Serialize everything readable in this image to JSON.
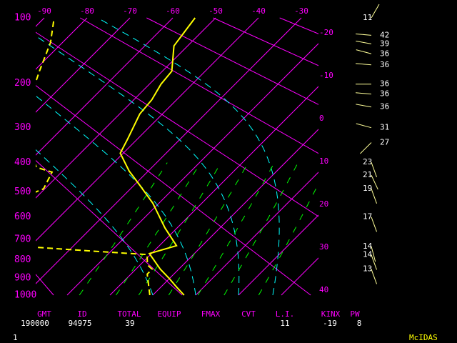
{
  "chart_data": {
    "type": "skewt",
    "ylim": [
      1000,
      100
    ],
    "yticks": [
      100,
      200,
      300,
      400,
      500,
      600,
      700,
      800,
      900,
      1000
    ],
    "xlim": [
      -92,
      -26
    ],
    "xticks": [
      -90,
      -80,
      -70,
      -60,
      -50,
      -40,
      -30,
      -20,
      -10,
      0,
      10,
      20,
      30,
      40
    ],
    "grid": true,
    "isotherm_color": "#ff00ff",
    "dry_adiabats": {
      "color": "#ff00ff",
      "values": [
        250,
        280,
        310,
        340,
        370,
        400,
        430,
        460,
        490,
        520
      ]
    },
    "moist_adiabats": {
      "color": "#00ffff",
      "values": [
        0,
        10,
        20,
        28
      ]
    },
    "mixing_ratio_lines": {
      "color": "#00ff00",
      "values": [
        1,
        2,
        3,
        5,
        8,
        12,
        20
      ]
    },
    "series": [
      {
        "color": "#ffff00",
        "dashed": false,
        "pressures": [
          1000,
          952,
          899,
          851,
          769,
          730,
          648,
          543,
          476,
          427,
          371,
          330,
          266,
          234,
          202,
          178,
          137,
          100
        ],
        "values": [
          7.3,
          3.7,
          -0.3,
          -4.3,
          -10.5,
          -6.0,
          -12.8,
          -21.5,
          -28.7,
          -34.5,
          -40.7,
          -42.3,
          -45.3,
          -45.8,
          -47.3,
          -47.8,
          -53.2,
          -54.8
        ]
      },
      {
        "color": "#ffff00",
        "dashed": true,
        "pressures": [
          1000,
          878,
          851,
          828,
          774,
          762,
          738,
          700,
          600,
          489,
          431,
          415,
          300,
          178,
          132,
          100
        ],
        "values": [
          -0.7,
          -6.2,
          -6.2,
          -8.3,
          -10.8,
          -20.5,
          -38.3,
          -55,
          -60,
          -50.3,
          -52.2,
          -57,
          -70,
          -78.7,
          -82.8,
          -87.7
        ]
      }
    ],
    "winds": {
      "color": "#ffff99",
      "pressures": [
        100,
        122,
        134,
        149,
        167,
        202,
        222,
        250,
        300,
        340,
        399,
        441,
        489,
        600,
        734,
        776,
        851
      ],
      "speeds": [
        11,
        42,
        39,
        36,
        36,
        36,
        36,
        36,
        31,
        27,
        23,
        21,
        19,
        17,
        14,
        14,
        13
      ],
      "directions": [
        30,
        275,
        280,
        285,
        275,
        270,
        275,
        280,
        285,
        225,
        160,
        155,
        160,
        160,
        165,
        160,
        160
      ]
    }
  },
  "stats": [
    {
      "header": "GMT",
      "value": "190000"
    },
    {
      "header": "ID",
      "value": "94975"
    },
    {
      "header": "TOTAL",
      "value": "39"
    },
    {
      "header": "EQUIP"
    },
    {
      "header": "FMAX"
    },
    {
      "header": "CVT"
    },
    {
      "header": "L.I.",
      "value": "11"
    },
    {
      "header": "KINX",
      "value": "-19"
    },
    {
      "header": "PW",
      "value": "8"
    }
  ],
  "footer": {
    "page": "1",
    "brand": "McIDAS"
  }
}
